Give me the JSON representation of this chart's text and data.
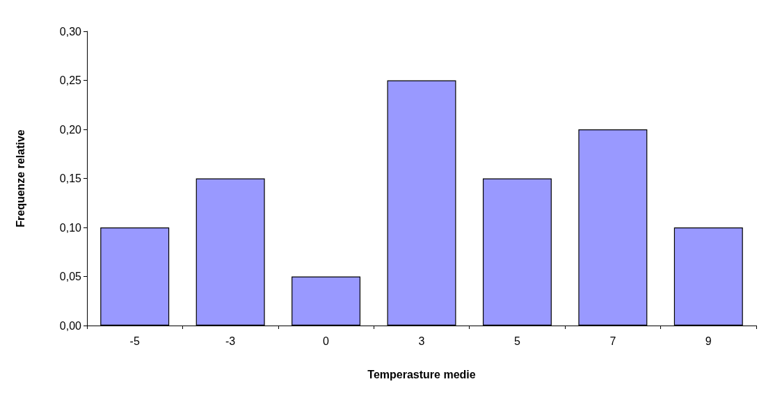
{
  "chart_data": {
    "type": "bar",
    "xlabel": "Temperasture medie",
    "ylabel": "Frequenze relative",
    "categories": [
      "-5",
      "-3",
      "0",
      "3",
      "5",
      "7",
      "9"
    ],
    "values": [
      0.1,
      0.15,
      0.05,
      0.25,
      0.15,
      0.2,
      0.1
    ],
    "color": "#9999ff",
    "ylim": [
      0,
      0.3
    ],
    "yticks": [
      {
        "value": 0,
        "label": "0,00"
      },
      {
        "value": 0.05,
        "label": "0,05"
      },
      {
        "value": 0.1,
        "label": "0,10"
      },
      {
        "value": 0.15,
        "label": "0,15"
      },
      {
        "value": 0.2,
        "label": "0,20"
      },
      {
        "value": 0.25,
        "label": "0,25"
      },
      {
        "value": 0.3,
        "label": "0,30"
      }
    ]
  }
}
